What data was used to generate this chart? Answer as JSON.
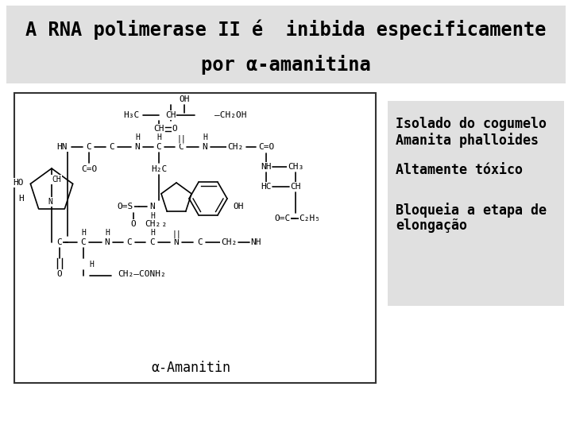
{
  "title_line1": "A RNA polimerase II é  inibida especificamente",
  "title_line2": "por α-amanitina",
  "title_bg": "#e0e0e0",
  "title_fontsize": 17,
  "title_font": "monospace",
  "bullet1_line1": "Isolado do cogumelo",
  "bullet1_line2": "Amanita phalloides",
  "bullet2": "Altamente tóxico",
  "bullet3_line1": "Bloqueia a etapa de",
  "bullet3_line2": "elongação",
  "bullet_bg": "#e0e0e0",
  "bullet_fontsize": 12,
  "bullet_font": "monospace",
  "fig_bg": "#ffffff",
  "chem_label": "α-Amanitin",
  "chem_box_color": "#ffffff",
  "chem_box_edge": "#333333"
}
